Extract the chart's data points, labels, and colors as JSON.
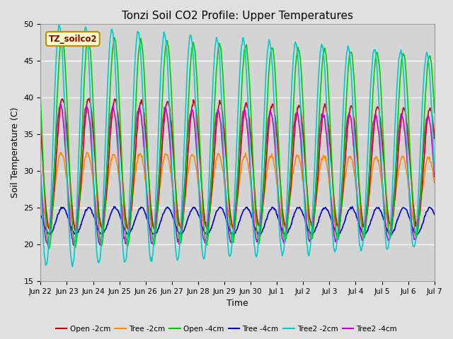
{
  "title": "Tonzi Soil CO2 Profile: Upper Temperatures",
  "xlabel": "Time",
  "ylabel": "Soil Temperature (C)",
  "ylim": [
    15,
    50
  ],
  "background_color": "#e0e0e0",
  "plot_bg_color": "#d4d4d4",
  "annotation_text": "TZ_soilco2",
  "annotation_bg": "#ffffcc",
  "annotation_border": "#cc8800",
  "series": [
    {
      "label": "Open -2cm",
      "color": "#cc0000",
      "lw": 1.2
    },
    {
      "label": "Tree -2cm",
      "color": "#ff8800",
      "lw": 1.2
    },
    {
      "label": "Open -4cm",
      "color": "#00cc00",
      "lw": 1.2
    },
    {
      "label": "Tree -4cm",
      "color": "#0000cc",
      "lw": 1.2
    },
    {
      "label": "Tree2 -2cm",
      "color": "#00cccc",
      "lw": 1.2
    },
    {
      "label": "Tree2 -4cm",
      "color": "#cc00cc",
      "lw": 1.2
    }
  ],
  "xtick_labels": [
    "Jun 22",
    "Jun 23",
    "Jun 24",
    "Jun 25",
    "Jun 26",
    "Jun 27",
    "Jun 28",
    "Jun 29",
    "Jun 30",
    "Jul 1",
    "Jul 2",
    "Jul 3",
    "Jul 4",
    "Jul 5",
    "Jul 6",
    "Jul 7"
  ],
  "ytick_labels": [
    "15",
    "20",
    "25",
    "30",
    "35",
    "40",
    "45",
    "50"
  ],
  "ytick_values": [
    15,
    20,
    25,
    30,
    35,
    40,
    45,
    50
  ],
  "n_days": 15,
  "pts_per_day": 48,
  "series_params": {
    "open2": {
      "amp": 9.0,
      "mean": 31.0,
      "phase_shift": 0.0,
      "amp_decay": 0.12,
      "mean_decay": 0.15
    },
    "tree2": {
      "amp": 5.0,
      "mean": 27.5,
      "phase_shift": 0.05,
      "amp_decay": 0.08,
      "mean_decay": 0.1
    },
    "open4": {
      "amp": 14.5,
      "mean": 34.0,
      "phase_shift": 0.02,
      "amp_decay": 0.15,
      "mean_decay": 0.18
    },
    "tree4": {
      "amp": 1.8,
      "mean": 23.2,
      "phase_shift": 0.0,
      "amp_decay": 0.0,
      "mean_decay": 0.0
    },
    "tree2_2": {
      "amp": 16.5,
      "mean": 33.5,
      "phase_shift": 0.12,
      "amp_decay": 0.2,
      "mean_decay": 0.22
    },
    "tree2_4": {
      "amp": 9.5,
      "mean": 29.5,
      "phase_shift": 0.08,
      "amp_decay": 0.12,
      "mean_decay": 0.15
    }
  }
}
